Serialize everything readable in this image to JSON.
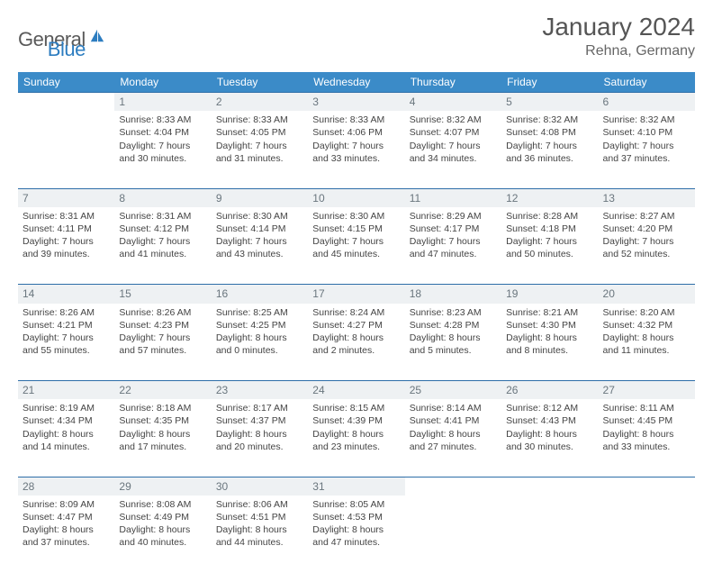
{
  "brand": {
    "part1": "General",
    "part2": "Blue"
  },
  "title": "January 2024",
  "location": "Rehna, Germany",
  "colors": {
    "header_bg": "#3b8bc8",
    "daynum_bg": "#eef1f3",
    "day_border": "#2d6ea8",
    "text": "#444"
  },
  "weekdays": [
    "Sunday",
    "Monday",
    "Tuesday",
    "Wednesday",
    "Thursday",
    "Friday",
    "Saturday"
  ],
  "weeks": [
    {
      "nums": [
        "",
        "1",
        "2",
        "3",
        "4",
        "5",
        "6"
      ],
      "cells": [
        null,
        {
          "sr": "8:33 AM",
          "ss": "4:04 PM",
          "dl": "7 hours and 30 minutes."
        },
        {
          "sr": "8:33 AM",
          "ss": "4:05 PM",
          "dl": "7 hours and 31 minutes."
        },
        {
          "sr": "8:33 AM",
          "ss": "4:06 PM",
          "dl": "7 hours and 33 minutes."
        },
        {
          "sr": "8:32 AM",
          "ss": "4:07 PM",
          "dl": "7 hours and 34 minutes."
        },
        {
          "sr": "8:32 AM",
          "ss": "4:08 PM",
          "dl": "7 hours and 36 minutes."
        },
        {
          "sr": "8:32 AM",
          "ss": "4:10 PM",
          "dl": "7 hours and 37 minutes."
        }
      ]
    },
    {
      "nums": [
        "7",
        "8",
        "9",
        "10",
        "11",
        "12",
        "13"
      ],
      "cells": [
        {
          "sr": "8:31 AM",
          "ss": "4:11 PM",
          "dl": "7 hours and 39 minutes."
        },
        {
          "sr": "8:31 AM",
          "ss": "4:12 PM",
          "dl": "7 hours and 41 minutes."
        },
        {
          "sr": "8:30 AM",
          "ss": "4:14 PM",
          "dl": "7 hours and 43 minutes."
        },
        {
          "sr": "8:30 AM",
          "ss": "4:15 PM",
          "dl": "7 hours and 45 minutes."
        },
        {
          "sr": "8:29 AM",
          "ss": "4:17 PM",
          "dl": "7 hours and 47 minutes."
        },
        {
          "sr": "8:28 AM",
          "ss": "4:18 PM",
          "dl": "7 hours and 50 minutes."
        },
        {
          "sr": "8:27 AM",
          "ss": "4:20 PM",
          "dl": "7 hours and 52 minutes."
        }
      ]
    },
    {
      "nums": [
        "14",
        "15",
        "16",
        "17",
        "18",
        "19",
        "20"
      ],
      "cells": [
        {
          "sr": "8:26 AM",
          "ss": "4:21 PM",
          "dl": "7 hours and 55 minutes."
        },
        {
          "sr": "8:26 AM",
          "ss": "4:23 PM",
          "dl": "7 hours and 57 minutes."
        },
        {
          "sr": "8:25 AM",
          "ss": "4:25 PM",
          "dl": "8 hours and 0 minutes."
        },
        {
          "sr": "8:24 AM",
          "ss": "4:27 PM",
          "dl": "8 hours and 2 minutes."
        },
        {
          "sr": "8:23 AM",
          "ss": "4:28 PM",
          "dl": "8 hours and 5 minutes."
        },
        {
          "sr": "8:21 AM",
          "ss": "4:30 PM",
          "dl": "8 hours and 8 minutes."
        },
        {
          "sr": "8:20 AM",
          "ss": "4:32 PM",
          "dl": "8 hours and 11 minutes."
        }
      ]
    },
    {
      "nums": [
        "21",
        "22",
        "23",
        "24",
        "25",
        "26",
        "27"
      ],
      "cells": [
        {
          "sr": "8:19 AM",
          "ss": "4:34 PM",
          "dl": "8 hours and 14 minutes."
        },
        {
          "sr": "8:18 AM",
          "ss": "4:35 PM",
          "dl": "8 hours and 17 minutes."
        },
        {
          "sr": "8:17 AM",
          "ss": "4:37 PM",
          "dl": "8 hours and 20 minutes."
        },
        {
          "sr": "8:15 AM",
          "ss": "4:39 PM",
          "dl": "8 hours and 23 minutes."
        },
        {
          "sr": "8:14 AM",
          "ss": "4:41 PM",
          "dl": "8 hours and 27 minutes."
        },
        {
          "sr": "8:12 AM",
          "ss": "4:43 PM",
          "dl": "8 hours and 30 minutes."
        },
        {
          "sr": "8:11 AM",
          "ss": "4:45 PM",
          "dl": "8 hours and 33 minutes."
        }
      ]
    },
    {
      "nums": [
        "28",
        "29",
        "30",
        "31",
        "",
        "",
        ""
      ],
      "cells": [
        {
          "sr": "8:09 AM",
          "ss": "4:47 PM",
          "dl": "8 hours and 37 minutes."
        },
        {
          "sr": "8:08 AM",
          "ss": "4:49 PM",
          "dl": "8 hours and 40 minutes."
        },
        {
          "sr": "8:06 AM",
          "ss": "4:51 PM",
          "dl": "8 hours and 44 minutes."
        },
        {
          "sr": "8:05 AM",
          "ss": "4:53 PM",
          "dl": "8 hours and 47 minutes."
        },
        null,
        null,
        null
      ]
    }
  ],
  "labels": {
    "sunrise": "Sunrise:",
    "sunset": "Sunset:",
    "daylight": "Daylight:"
  }
}
